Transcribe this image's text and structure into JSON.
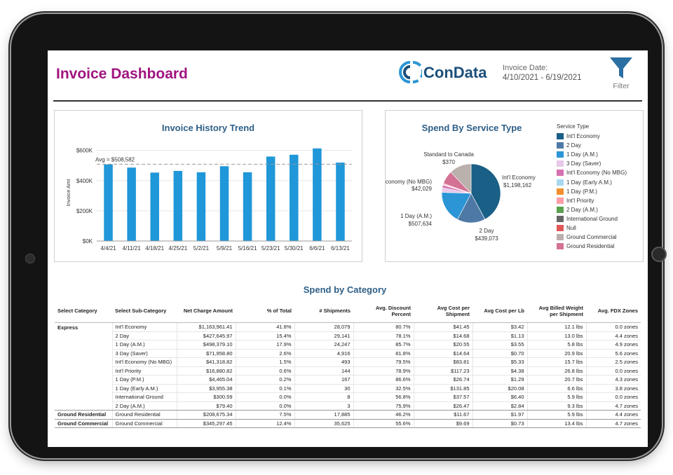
{
  "header": {
    "title": "Invoice Dashboard",
    "logo_text": "ConData",
    "invoice_date_label": "Invoice Date:",
    "invoice_date_range": "4/10/2021 - 6/19/2021",
    "filter_label": "Filter"
  },
  "colors": {
    "title": "#a0157f",
    "bar": "#1f97d8",
    "accent_blue": "#2e5f87"
  },
  "trend_chart": {
    "title": "Invoice History Trend",
    "ylabel": "Invoice Amt",
    "avg_label": "Avg = $508,582",
    "y_tick_labels": [
      "$0K",
      "$200K",
      "$400K",
      "$600K"
    ],
    "x_tick_labels": [
      "4/4/21",
      "4/11/21",
      "4/18/21",
      "4/25/21",
      "5/2/21",
      "5/9/21",
      "5/16/21",
      "5/23/21",
      "5/30/21",
      "6/6/21",
      "6/13/21"
    ]
  },
  "pie_chart": {
    "title": "Spend By Service Type",
    "legend_title": "Service Type",
    "legend": [
      {
        "label": "Int'l Economy",
        "color": "#1a5f86"
      },
      {
        "label": "2 Day",
        "color": "#4e79a7"
      },
      {
        "label": "1 Day (A.M.)",
        "color": "#2b95d6"
      },
      {
        "label": "3 Day (Saver)",
        "color": "#e6c8e8"
      },
      {
        "label": "Int'l Economy (No MBG)",
        "color": "#d670b0"
      },
      {
        "label": "1 Day (Early A.M.)",
        "color": "#a8d8f0"
      },
      {
        "label": "1 Day (P.M.)",
        "color": "#f28e2b"
      },
      {
        "label": "Int'l Priority",
        "color": "#ff9da7"
      },
      {
        "label": "2 Day (A.M.)",
        "color": "#59a14f"
      },
      {
        "label": "International Ground",
        "color": "#666666"
      },
      {
        "label": "Null",
        "color": "#e15759"
      },
      {
        "label": "Ground Commercial",
        "color": "#bab0ac"
      },
      {
        "label": "Ground Residential",
        "color": "#d37295"
      }
    ],
    "labels": {
      "standard_canada_name": "Standard to Canada",
      "standard_canada_value": "$370",
      "intl_economy_name": "Int'l Economy",
      "intl_economy_value": "$1,198,162",
      "intl_no_mbg_name": "Int'l Economy (No MBG)",
      "intl_no_mbg_value": "$42,029",
      "one_day_am_name": "1 Day (A.M.)",
      "one_day_am_value": "$507,634",
      "two_day_name": "2 Day",
      "two_day_value": "$439,073"
    }
  },
  "chart_data": [
    {
      "type": "bar",
      "title": "Invoice History Trend",
      "xlabel": "",
      "ylabel": "Invoice Amt",
      "categories": [
        "4/4/21",
        "4/11/21",
        "4/18/21",
        "4/25/21",
        "5/2/21",
        "5/9/21",
        "5/16/21",
        "5/23/21",
        "5/30/21",
        "6/6/21",
        "6/13/21"
      ],
      "values": [
        507000,
        486000,
        453000,
        464000,
        455000,
        495000,
        455000,
        559000,
        571000,
        613000,
        519000
      ],
      "ylim": [
        0,
        640000
      ],
      "reference_line": {
        "label": "Avg = $508,582",
        "value": 508582
      },
      "grid": true
    },
    {
      "type": "pie",
      "title": "Spend By Service Type",
      "categories": [
        "Int'l Economy",
        "2 Day",
        "1 Day (A.M.)",
        "3 Day (Saver)",
        "Int'l Economy (No MBG)",
        "1 Day (Early A.M.)",
        "1 Day (P.M.)",
        "Int'l Priority",
        "2 Day (A.M.)",
        "International Ground",
        "Ground Commercial",
        "Ground Residential",
        "Standard to Canada"
      ],
      "values": [
        1198162,
        439073,
        507634,
        71958,
        42029,
        3956,
        4465,
        16881,
        79,
        301,
        345297,
        208676,
        370
      ],
      "legend": "right"
    }
  ],
  "category_table": {
    "title": "Spend by Category",
    "headers": [
      "Select Category",
      "Select Sub-Category",
      "Net Charge Amount",
      "% of Total",
      "# Shipments",
      "Avg. Discount Percent",
      "Avg Cost per Shipment",
      "Avg Cost per Lb",
      "Avg Billed Weight per Shipment",
      "Avg. FDX Zones"
    ],
    "rows": [
      [
        "Express",
        "Int'l Economy",
        "$1,163,961.41",
        "41.8%",
        "28,079",
        "80.7%",
        "$41.45",
        "$3.42",
        "12.1 lbs",
        "0.0 zones"
      ],
      [
        "",
        "2 Day",
        "$427,645.97",
        "15.4%",
        "29,141",
        "78.1%",
        "$14.68",
        "$1.13",
        "13.0 lbs",
        "4.4 zones"
      ],
      [
        "",
        "1 Day (A.M.)",
        "$498,379.10",
        "17.9%",
        "24,247",
        "85.7%",
        "$20.55",
        "$3.55",
        "5.8 lbs",
        "4.9 zones"
      ],
      [
        "",
        "3 Day (Saver)",
        "$71,958.80",
        "2.6%",
        "4,916",
        "81.8%",
        "$14.64",
        "$0.70",
        "20.9 lbs",
        "5.6 zones"
      ],
      [
        "",
        "Int'l Economy (No MBG)",
        "$41,318.82",
        "1.5%",
        "493",
        "79.5%",
        "$83.81",
        "$5.33",
        "15.7 lbs",
        "2.5 zones"
      ],
      [
        "",
        "Int'l Priority",
        "$16,880.82",
        "0.6%",
        "144",
        "78.9%",
        "$117.23",
        "$4.38",
        "26.8 lbs",
        "0.0 zones"
      ],
      [
        "",
        "1 Day (P.M.)",
        "$4,465.04",
        "0.2%",
        "167",
        "86.6%",
        "$26.74",
        "$1.29",
        "20.7 lbs",
        "4.3 zones"
      ],
      [
        "",
        "1 Day (Early A.M.)",
        "$3,955.38",
        "0.1%",
        "30",
        "32.5%",
        "$131.85",
        "$20.08",
        "6.6 lbs",
        "3.8 zones"
      ],
      [
        "",
        "International Ground",
        "$300.59",
        "0.0%",
        "8",
        "56.8%",
        "$37.57",
        "$6.40",
        "5.9 lbs",
        "0.0 zones"
      ],
      [
        "",
        "2 Day (A.M.)",
        "$79.40",
        "0.0%",
        "3",
        "75.9%",
        "$26.47",
        "$2.84",
        "9.3 lbs",
        "4.7 zones"
      ],
      [
        "Ground Residential",
        "Ground Residential",
        "$208,675.34",
        "7.5%",
        "17,885",
        "46.2%",
        "$11.67",
        "$1.97",
        "5.9 lbs",
        "4.4 zones"
      ],
      [
        "Ground Commercial",
        "Ground Commercial",
        "$345,297.45",
        "12.4%",
        "35,625",
        "55.6%",
        "$9.69",
        "$0.73",
        "13.4 lbs",
        "4.7 zones"
      ]
    ]
  }
}
